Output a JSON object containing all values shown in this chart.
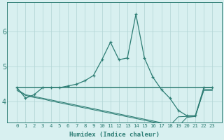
{
  "xlabel": "Humidex (Indice chaleur)",
  "x_values": [
    0,
    1,
    2,
    3,
    4,
    5,
    6,
    7,
    8,
    9,
    10,
    11,
    12,
    13,
    14,
    15,
    16,
    17,
    18,
    19,
    20,
    21,
    22,
    23
  ],
  "line1": [
    4.4,
    4.1,
    4.2,
    4.4,
    4.4,
    4.4,
    4.45,
    4.5,
    4.6,
    4.75,
    5.2,
    5.7,
    5.2,
    5.25,
    6.5,
    5.25,
    4.7,
    4.35,
    4.1,
    3.75,
    3.6,
    3.6,
    4.4,
    4.4
  ],
  "line2": [
    4.4,
    4.4,
    4.4,
    4.4,
    4.4,
    4.4,
    4.4,
    4.4,
    4.4,
    4.4,
    4.4,
    4.4,
    4.4,
    4.4,
    4.4,
    4.4,
    4.4,
    4.4,
    4.4,
    4.4,
    4.4,
    4.4,
    4.4,
    4.4
  ],
  "line3": [
    4.35,
    4.2,
    4.15,
    4.1,
    4.05,
    4.0,
    3.95,
    3.9,
    3.85,
    3.8,
    3.75,
    3.7,
    3.65,
    3.6,
    3.55,
    3.5,
    3.45,
    3.4,
    3.35,
    3.3,
    3.55,
    3.58,
    4.35,
    4.35
  ],
  "line4": [
    4.32,
    4.18,
    4.12,
    4.08,
    4.02,
    3.97,
    3.92,
    3.87,
    3.82,
    3.77,
    3.72,
    3.67,
    3.62,
    3.57,
    3.52,
    3.47,
    3.42,
    3.37,
    3.32,
    3.57,
    3.58,
    3.58,
    4.32,
    4.32
  ],
  "line_color": "#2d7d74",
  "bg_color": "#d8f0f0",
  "grid_color": "#b0d4d4",
  "ylim": [
    3.4,
    6.85
  ],
  "yticks": [
    4,
    5,
    6
  ],
  "xticks": [
    0,
    1,
    2,
    3,
    4,
    5,
    6,
    7,
    8,
    9,
    10,
    11,
    12,
    13,
    14,
    15,
    16,
    17,
    18,
    19,
    20,
    21,
    22,
    23
  ],
  "xlabel_fontsize": 6.5,
  "ylabel_fontsize": 7,
  "xtick_fontsize": 5.2,
  "ytick_fontsize": 7
}
